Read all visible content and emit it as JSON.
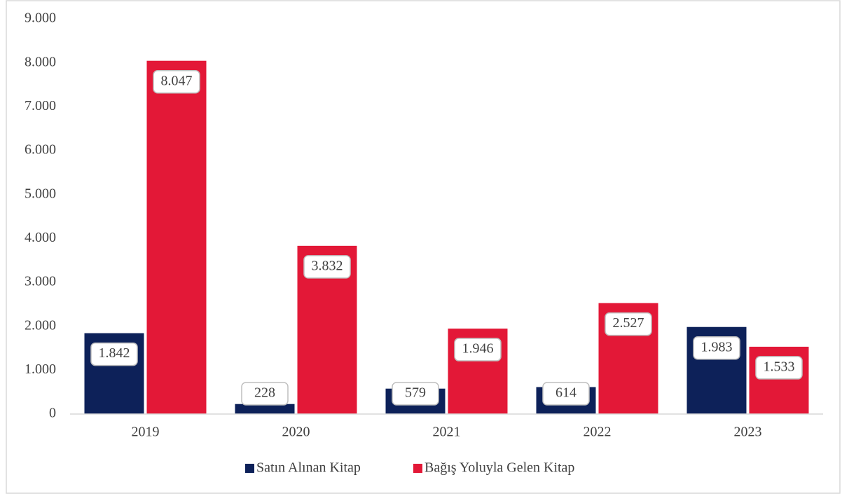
{
  "chart_data": {
    "type": "bar",
    "categories": [
      "2019",
      "2020",
      "2021",
      "2022",
      "2023"
    ],
    "series": [
      {
        "name": "Satın Alınan Kitap",
        "color": "#0d2159",
        "values": [
          1842,
          228,
          579,
          614,
          1983
        ],
        "value_labels": [
          "1.842",
          "228",
          "579",
          "614",
          "1.983"
        ]
      },
      {
        "name": "Bağış Yoluyla Gelen Kitap",
        "color": "#e31837",
        "values": [
          8047,
          3832,
          1946,
          2527,
          1533
        ],
        "value_labels": [
          "8.047",
          "3.832",
          "1.946",
          "2.527",
          "1.533"
        ]
      }
    ],
    "ylim": [
      0,
      9000
    ],
    "yticks": [
      {
        "value": 0,
        "label": "0"
      },
      {
        "value": 1000,
        "label": "1.000"
      },
      {
        "value": 2000,
        "label": "2.000"
      },
      {
        "value": 3000,
        "label": "3.000"
      },
      {
        "value": 4000,
        "label": "4.000"
      },
      {
        "value": 5000,
        "label": "5.000"
      },
      {
        "value": 6000,
        "label": "6.000"
      },
      {
        "value": 7000,
        "label": "7.000"
      },
      {
        "value": 8000,
        "label": "8.000"
      },
      {
        "value": 9000,
        "label": "9.000"
      }
    ],
    "grid": false,
    "legend": "bottom"
  }
}
